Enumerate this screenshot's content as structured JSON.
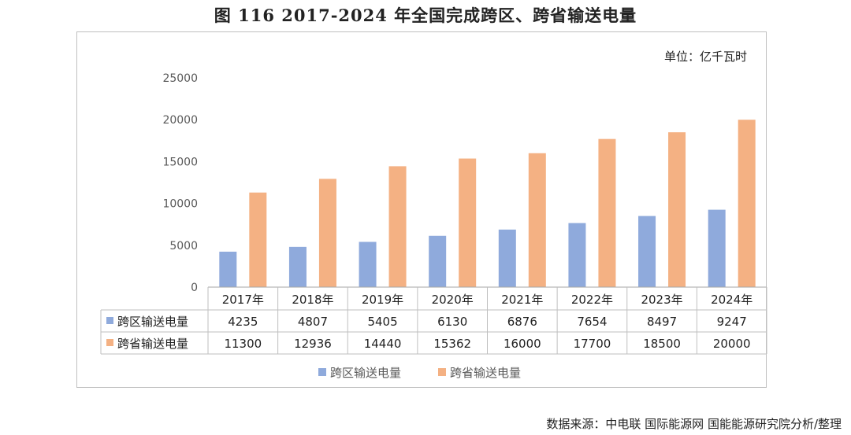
{
  "title": "图 116 2017-2024 年全国完成跨区、跨省输送电量",
  "source": "数据来源：中电联 国际能源网 国能能源研究院分析/整理",
  "chart_data": {
    "type": "bar",
    "unit_label": "单位：亿千瓦时",
    "categories": [
      "2017年",
      "2018年",
      "2019年",
      "2020年",
      "2021年",
      "2022年",
      "2023年",
      "2024年"
    ],
    "series": [
      {
        "name": "跨区输送电量",
        "color": "#8faadc",
        "values": [
          4235,
          4807,
          5405,
          6130,
          6876,
          7654,
          8497,
          9247
        ]
      },
      {
        "name": "跨省输送电量",
        "color": "#f4b183",
        "values": [
          11300,
          12936,
          14440,
          15362,
          16000,
          17700,
          18500,
          20000
        ]
      }
    ],
    "yticks": [
      "0",
      "5000",
      "10000",
      "15000",
      "20000",
      "25000"
    ],
    "ylim": [
      0,
      25000
    ],
    "grid": false,
    "legend": "bottom",
    "data_table": true
  }
}
